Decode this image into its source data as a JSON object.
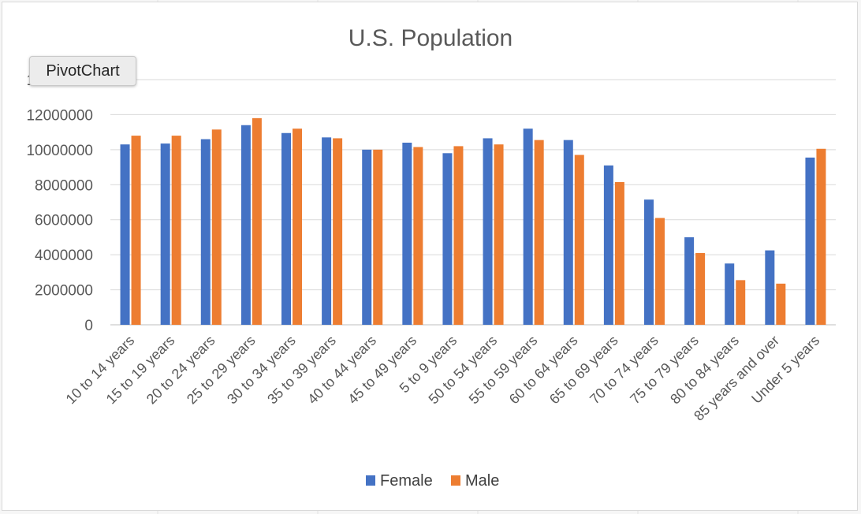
{
  "pivot_button": {
    "label": "PivotChart"
  },
  "colors": {
    "Female": "#4472c4",
    "Male": "#ed7d31",
    "grid": "#d9d9d9",
    "text": "#595959"
  },
  "chart_data": {
    "type": "bar",
    "title": "U.S. Population",
    "xlabel": "",
    "ylabel": "",
    "ylim": [
      0,
      14000000
    ],
    "yticks": [
      0,
      2000000,
      4000000,
      6000000,
      8000000,
      10000000,
      12000000,
      14000000
    ],
    "ytick_labels": [
      "0",
      "2000000",
      "4000000",
      "6000000",
      "8000000",
      "10000000",
      "12000000",
      "14000000"
    ],
    "grid": true,
    "legend_position": "bottom",
    "categories": [
      "10 to 14 years",
      "15 to 19 years",
      "20 to 24 years",
      "25 to 29 years",
      "30 to 34 years",
      "35 to 39 years",
      "40 to 44 years",
      "45 to 49 years",
      "5 to 9 years",
      "50 to 54 years",
      "55 to 59 years",
      "60 to 64 years",
      "65 to 69 years",
      "70 to 74 years",
      "75 to 79 years",
      "80 to 84 years",
      "85 years and over",
      "Under 5 years"
    ],
    "series": [
      {
        "name": "Female",
        "values": [
          10300000,
          10350000,
          10600000,
          11400000,
          10950000,
          10700000,
          10000000,
          10400000,
          9800000,
          10650000,
          11200000,
          10550000,
          9100000,
          7150000,
          5000000,
          3500000,
          4250000,
          9550000
        ]
      },
      {
        "name": "Male",
        "values": [
          10800000,
          10800000,
          11150000,
          11800000,
          11200000,
          10650000,
          10000000,
          10150000,
          10200000,
          10300000,
          10550000,
          9700000,
          8150000,
          6100000,
          4100000,
          2550000,
          2350000,
          10050000
        ]
      }
    ]
  }
}
